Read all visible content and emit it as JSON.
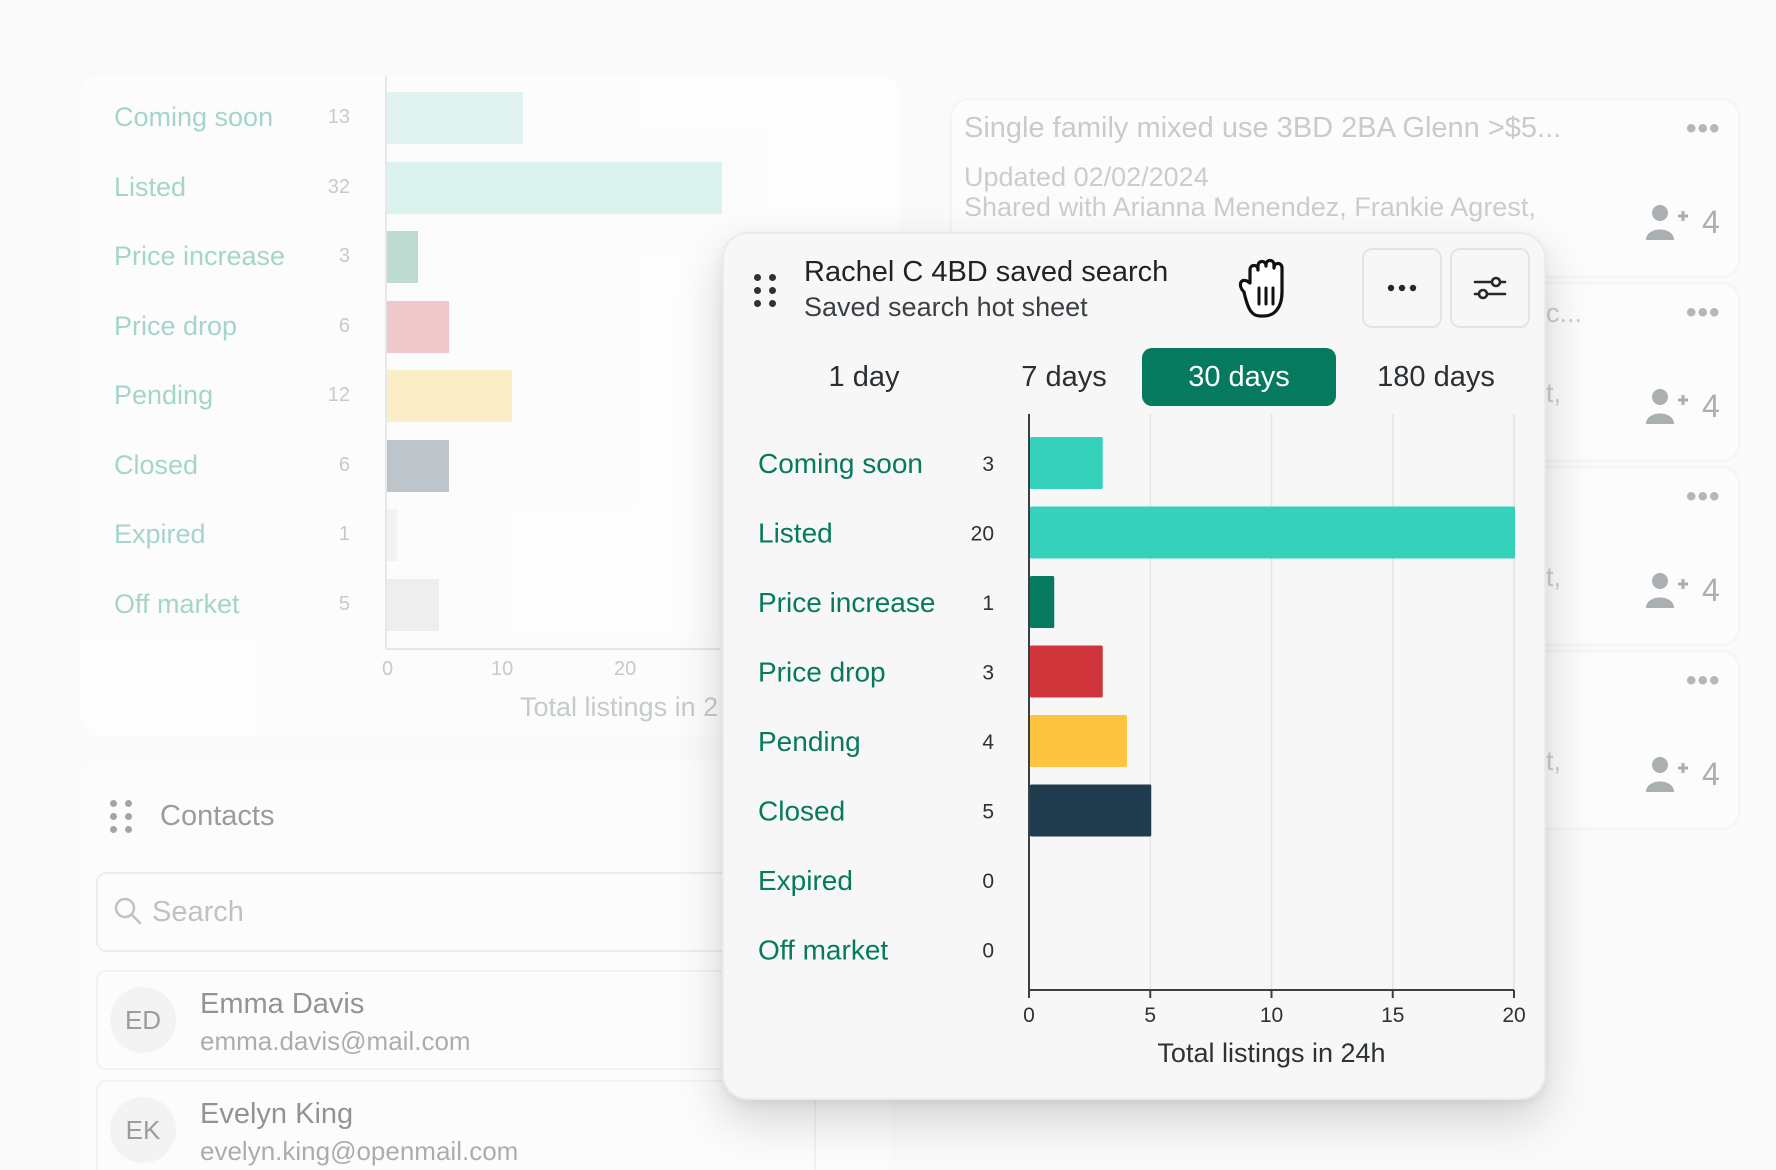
{
  "background_chart": {
    "categories": [
      "Coming soon",
      "Listed",
      "Price increase",
      "Price drop",
      "Pending",
      "Closed",
      "Expired",
      "Off market"
    ],
    "values": [
      13,
      32,
      3,
      6,
      12,
      6,
      1,
      5
    ],
    "colors": [
      "#cdeee8",
      "#c4ede6",
      "#8ec3b3",
      "#e5a0a3",
      "#fde39b",
      "#8e9aa3",
      "#ececec",
      "#e6e6e6"
    ],
    "ticks": [
      "0",
      "10",
      "20"
    ],
    "xlabel": "Total listings in 2"
  },
  "contacts": {
    "title": "Contacts",
    "search_placeholder": "Search",
    "items": [
      {
        "initials": "ED",
        "name": "Emma Davis",
        "email": "emma.davis@mail.com"
      },
      {
        "initials": "EK",
        "name": "Evelyn King",
        "email": "evelyn.king@openmail.com"
      }
    ]
  },
  "saved_searches": {
    "first": {
      "title": "Single family mixed use 3BD 2BA Glenn >$5...",
      "updated": "Updated 02/02/2024",
      "shared": "Shared with Arianna Menendez, Frankie Agrest,"
    },
    "partial_texts": [
      "c...",
      "t,",
      "t,",
      "t,"
    ],
    "share_counts": [
      "4",
      "4",
      "4",
      "4"
    ],
    "more_icon": "more-horizontal-icon",
    "share_icon": "add-user-icon"
  },
  "popup": {
    "title": "Rachel C 4BD saved search",
    "subtitle": "Saved search hot sheet",
    "more_icon": "more-horizontal-icon",
    "filter_icon": "sliders-icon",
    "drag_icon": "drag-handle-icon",
    "tabs": [
      "1 day",
      "7 days",
      "30 days",
      "180 days"
    ],
    "active_tab": "30 days"
  },
  "chart_data": {
    "type": "bar",
    "orientation": "horizontal",
    "categories": [
      "Coming soon",
      "Listed",
      "Price increase",
      "Price drop",
      "Pending",
      "Closed",
      "Expired",
      "Off market"
    ],
    "values": [
      3,
      20,
      1,
      3,
      4,
      5,
      0,
      0
    ],
    "colors": [
      "#35d1bb",
      "#35d1bb",
      "#067a5e",
      "#d0353b",
      "#fec440",
      "#213b4e",
      "#cccccc",
      "#cccccc"
    ],
    "xlim": [
      0,
      20
    ],
    "xticks": [
      0,
      5,
      10,
      15,
      20
    ],
    "xlabel": "Total listings in 24h",
    "grid": true,
    "label_color": "#067a5e"
  },
  "cursor": "grab-hand-icon"
}
